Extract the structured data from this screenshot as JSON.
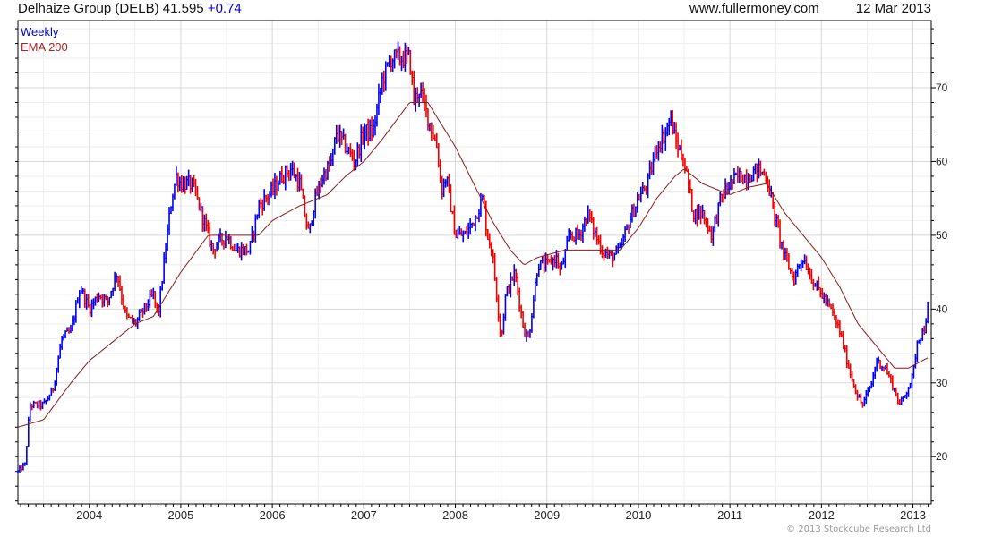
{
  "header": {
    "title": "Delhaize Group (DELB)",
    "last": "41.595",
    "change": "+0.74",
    "site": "www.fullermoney.com",
    "date": "12 Mar 2013"
  },
  "copyright": "© 2013 Stockcube Research Ltd",
  "colors": {
    "up": "#0000ee",
    "down": "#ee0000",
    "ema": "#8b1a1a"
  },
  "chart_data": {
    "type": "line",
    "title": "Delhaize Group (DELB) weekly",
    "legend": [
      {
        "name": "Weekly",
        "color": "#0000cc"
      },
      {
        "name": "EMA 200",
        "color": "#aa2222"
      }
    ],
    "legend_position": "top-left",
    "xlim": [
      2003.22,
      2013.2
    ],
    "ylim": [
      13.6,
      79.1
    ],
    "x_ticks": [
      "2004",
      "2005",
      "2006",
      "2007",
      "2008",
      "2009",
      "2010",
      "2011",
      "2012",
      "2013"
    ],
    "y_ticks": [
      "20",
      "30",
      "40",
      "50",
      "60",
      "70"
    ],
    "grid": true,
    "price_series": {
      "name": "Weekly",
      "points": [
        [
          2003.22,
          18
        ],
        [
          2003.3,
          19
        ],
        [
          2003.35,
          27
        ],
        [
          2003.5,
          27
        ],
        [
          2003.6,
          29
        ],
        [
          2003.7,
          36
        ],
        [
          2003.8,
          37
        ],
        [
          2003.9,
          43
        ],
        [
          2004.0,
          40
        ],
        [
          2004.1,
          42
        ],
        [
          2004.2,
          41
        ],
        [
          2004.3,
          45
        ],
        [
          2004.4,
          39
        ],
        [
          2004.5,
          38
        ],
        [
          2004.6,
          40
        ],
        [
          2004.7,
          42
        ],
        [
          2004.75,
          39
        ],
        [
          2004.85,
          50
        ],
        [
          2004.9,
          55
        ],
        [
          2004.95,
          58
        ],
        [
          2005.0,
          57
        ],
        [
          2005.1,
          57
        ],
        [
          2005.15,
          56
        ],
        [
          2005.25,
          52
        ],
        [
          2005.3,
          50
        ],
        [
          2005.35,
          48
        ],
        [
          2005.4,
          49
        ],
        [
          2005.5,
          50
        ],
        [
          2005.6,
          48
        ],
        [
          2005.75,
          48
        ],
        [
          2005.85,
          54
        ],
        [
          2006.0,
          56
        ],
        [
          2006.1,
          58
        ],
        [
          2006.2,
          59
        ],
        [
          2006.3,
          57
        ],
        [
          2006.35,
          53
        ],
        [
          2006.4,
          50
        ],
        [
          2006.45,
          54
        ],
        [
          2006.55,
          58
        ],
        [
          2006.65,
          60
        ],
        [
          2006.7,
          64
        ],
        [
          2006.8,
          62
        ],
        [
          2006.9,
          60
        ],
        [
          2007.0,
          64
        ],
        [
          2007.1,
          64
        ],
        [
          2007.2,
          71
        ],
        [
          2007.3,
          74
        ],
        [
          2007.4,
          74
        ],
        [
          2007.5,
          74
        ],
        [
          2007.55,
          68
        ],
        [
          2007.6,
          70
        ],
        [
          2007.7,
          66
        ],
        [
          2007.8,
          62
        ],
        [
          2007.85,
          56
        ],
        [
          2007.9,
          58
        ],
        [
          2008.0,
          50
        ],
        [
          2008.1,
          50
        ],
        [
          2008.2,
          52
        ],
        [
          2008.3,
          55
        ],
        [
          2008.35,
          50
        ],
        [
          2008.4,
          48
        ],
        [
          2008.45,
          42
        ],
        [
          2008.5,
          36
        ],
        [
          2008.55,
          42
        ],
        [
          2008.65,
          45
        ],
        [
          2008.75,
          37
        ],
        [
          2008.8,
          36
        ],
        [
          2008.9,
          46
        ],
        [
          2009.0,
          46
        ],
        [
          2009.1,
          47
        ],
        [
          2009.15,
          45
        ],
        [
          2009.25,
          50
        ],
        [
          2009.35,
          50
        ],
        [
          2009.45,
          53
        ],
        [
          2009.5,
          51
        ],
        [
          2009.6,
          48
        ],
        [
          2009.7,
          47
        ],
        [
          2009.8,
          48
        ],
        [
          2009.9,
          52
        ],
        [
          2010.0,
          55
        ],
        [
          2010.1,
          57
        ],
        [
          2010.2,
          62
        ],
        [
          2010.3,
          64
        ],
        [
          2010.35,
          66
        ],
        [
          2010.4,
          63
        ],
        [
          2010.5,
          60
        ],
        [
          2010.6,
          53
        ],
        [
          2010.7,
          53
        ],
        [
          2010.8,
          50
        ],
        [
          2010.9,
          55
        ],
        [
          2011.0,
          57
        ],
        [
          2011.1,
          58
        ],
        [
          2011.2,
          58
        ],
        [
          2011.3,
          59
        ],
        [
          2011.4,
          58
        ],
        [
          2011.45,
          55
        ],
        [
          2011.5,
          52
        ],
        [
          2011.6,
          47
        ],
        [
          2011.7,
          44
        ],
        [
          2011.75,
          46
        ],
        [
          2011.8,
          47
        ],
        [
          2011.9,
          44
        ],
        [
          2012.0,
          42
        ],
        [
          2012.1,
          40
        ],
        [
          2012.2,
          37
        ],
        [
          2012.3,
          32
        ],
        [
          2012.4,
          28
        ],
        [
          2012.45,
          27
        ],
        [
          2012.55,
          30
        ],
        [
          2012.6,
          33
        ],
        [
          2012.7,
          32
        ],
        [
          2012.8,
          29
        ],
        [
          2012.85,
          27
        ],
        [
          2012.9,
          28
        ],
        [
          2013.0,
          31
        ],
        [
          2013.05,
          36
        ],
        [
          2013.12,
          37
        ],
        [
          2013.18,
          41.6
        ]
      ]
    },
    "ema_series": {
      "name": "EMA 200",
      "points": [
        [
          2003.22,
          24
        ],
        [
          2003.5,
          25
        ],
        [
          2003.8,
          30
        ],
        [
          2004.0,
          33
        ],
        [
          2004.3,
          36
        ],
        [
          2004.5,
          38
        ],
        [
          2004.7,
          39
        ],
        [
          2005.0,
          45
        ],
        [
          2005.3,
          50
        ],
        [
          2005.6,
          50
        ],
        [
          2005.85,
          50
        ],
        [
          2006.0,
          52
        ],
        [
          2006.3,
          54
        ],
        [
          2006.6,
          55.5
        ],
        [
          2006.8,
          58
        ],
        [
          2007.0,
          60
        ],
        [
          2007.2,
          63
        ],
        [
          2007.5,
          68
        ],
        [
          2007.7,
          68
        ],
        [
          2007.9,
          64
        ],
        [
          2008.0,
          62
        ],
        [
          2008.2,
          57
        ],
        [
          2008.4,
          52
        ],
        [
          2008.6,
          48
        ],
        [
          2008.75,
          46
        ],
        [
          2008.9,
          47
        ],
        [
          2009.2,
          48
        ],
        [
          2009.5,
          48
        ],
        [
          2009.8,
          48
        ],
        [
          2010.0,
          51
        ],
        [
          2010.2,
          55
        ],
        [
          2010.4,
          58
        ],
        [
          2010.5,
          59
        ],
        [
          2010.7,
          57
        ],
        [
          2011.0,
          55.5
        ],
        [
          2011.2,
          56.5
        ],
        [
          2011.4,
          57
        ],
        [
          2011.6,
          53
        ],
        [
          2011.8,
          50
        ],
        [
          2012.0,
          47
        ],
        [
          2012.2,
          43
        ],
        [
          2012.4,
          38
        ],
        [
          2012.6,
          35
        ],
        [
          2012.8,
          32
        ],
        [
          2012.95,
          32
        ],
        [
          2013.1,
          33
        ],
        [
          2013.18,
          33.5
        ]
      ]
    }
  }
}
